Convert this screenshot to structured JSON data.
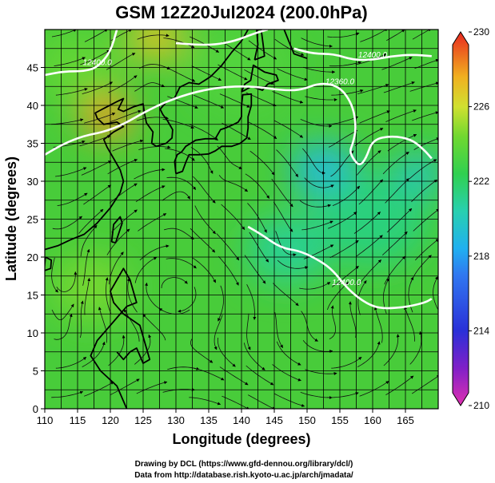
{
  "chart_data": {
    "type": "heatmap",
    "title": "GSM 12Z20Jul2024 (200.0hPa)",
    "xlabel": "Longitude (degrees)",
    "ylabel": "Latitude  (degrees)",
    "xlim": [
      110,
      170
    ],
    "ylim": [
      0,
      50
    ],
    "x_ticks": [
      110,
      115,
      120,
      125,
      130,
      135,
      140,
      145,
      150,
      155,
      160,
      165
    ],
    "y_ticks": [
      0,
      5,
      10,
      15,
      20,
      25,
      30,
      35,
      40,
      45
    ],
    "grid": true,
    "colorbar": {
      "position": "right",
      "min": 210,
      "max": 230,
      "ticks": [
        210,
        214,
        218,
        222,
        226,
        230
      ]
    },
    "contours": [
      {
        "label": "12360.0",
        "points": [
          [
            110,
            33.5
          ],
          [
            113,
            35
          ],
          [
            116,
            36
          ],
          [
            119,
            36.5
          ],
          [
            122,
            37.5
          ],
          [
            126,
            39.5
          ],
          [
            130,
            41
          ],
          [
            134,
            42
          ],
          [
            138,
            42.5
          ],
          [
            142,
            42.5
          ],
          [
            146,
            42
          ],
          [
            149,
            42
          ],
          [
            152,
            43
          ],
          [
            155,
            42.5
          ],
          [
            157,
            40
          ],
          [
            157.5,
            37
          ],
          [
            157,
            35
          ],
          [
            156.5,
            34
          ],
          [
            157,
            33
          ],
          [
            158,
            32
          ],
          [
            159,
            33
          ],
          [
            160,
            35.5
          ],
          [
            163,
            36
          ],
          [
            166,
            35.5
          ],
          [
            168,
            34
          ],
          [
            169,
            33
          ]
        ]
      },
      {
        "label": "12400.0",
        "points": [
          [
            110,
            44
          ],
          [
            113,
            44.5
          ],
          [
            116,
            44.5
          ],
          [
            118,
            45
          ],
          [
            120,
            47
          ],
          [
            121,
            50
          ]
        ]
      },
      {
        "label": "12400.0",
        "points": [
          [
            148,
            47.5
          ],
          [
            151,
            46.8
          ],
          [
            154,
            46.8
          ],
          [
            157,
            46
          ],
          [
            160,
            46
          ],
          [
            163,
            46.5
          ],
          [
            166,
            46.7
          ],
          [
            169,
            46.5
          ]
        ]
      },
      {
        "label": "12400.0",
        "points": [
          [
            141,
            24
          ],
          [
            143,
            23
          ],
          [
            146,
            21.2
          ],
          [
            149,
            20.8
          ],
          [
            152,
            19.5
          ],
          [
            154,
            18.2
          ],
          [
            156,
            16
          ],
          [
            158,
            14.5
          ],
          [
            160,
            13.5
          ],
          [
            162,
            13.2
          ],
          [
            165,
            13.4
          ],
          [
            168,
            14
          ],
          [
            169,
            14.5
          ]
        ]
      },
      {
        "label": "",
        "points": [
          [
            130,
            48.2
          ],
          [
            133,
            48
          ],
          [
            136,
            48
          ],
          [
            139,
            48.5
          ],
          [
            142,
            49.5
          ],
          [
            144,
            50
          ]
        ]
      }
    ],
    "colored_field": [
      {
        "lon": 119.5,
        "lat": 38.5,
        "value": 228
      },
      {
        "lon": 127,
        "lat": 49,
        "value": 227
      },
      {
        "lon": 152.5,
        "lat": 31.5,
        "value": 219
      },
      {
        "lon": 147,
        "lat": 21,
        "value": 221
      },
      {
        "lon": 167,
        "lat": 31,
        "value": 219.5
      },
      {
        "lon": 117,
        "lat": 16,
        "value": 224.5
      },
      {
        "lon": 115,
        "lat": 45,
        "value": 224
      },
      {
        "lon": 140,
        "lat": 45,
        "value": 223.5
      },
      {
        "lon": 160,
        "lat": 25,
        "value": 221.5
      }
    ],
    "streamlines": true
  },
  "credits": {
    "line1": "Drawing by DCL (https://www.gfd-dennou.org/library/dcl/)",
    "line2": "Data from http://database.rish.kyoto-u.ac.jp/arch/jmadata/"
  }
}
